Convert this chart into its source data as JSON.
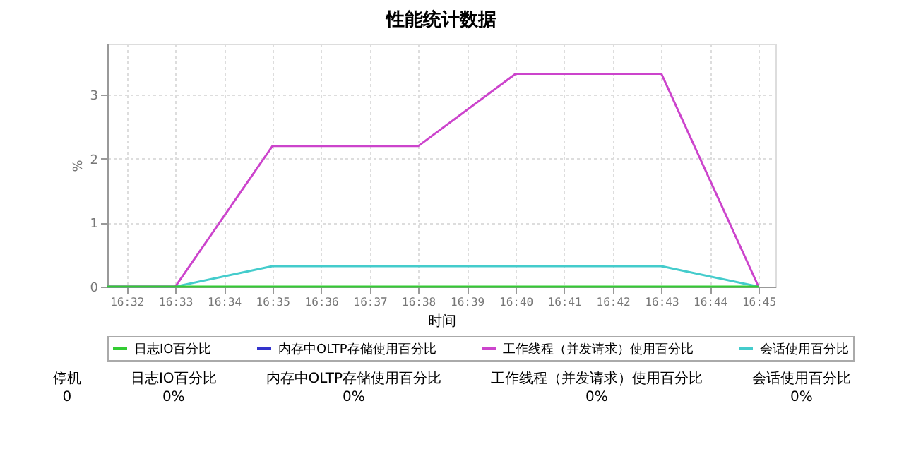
{
  "chart_data": {
    "type": "line",
    "title": "性能统计数据",
    "xlabel": "时间",
    "ylabel": "%",
    "x": [
      16.5267,
      16.55,
      16.5833,
      16.6333,
      16.6667,
      16.7167,
      16.75
    ],
    "series": [
      {
        "name": "日志IO百分比",
        "color": "#33cc33",
        "values": [
          0,
          0,
          0,
          0,
          0,
          0,
          0
        ]
      },
      {
        "name": "内存中OLTP存储使用百分比",
        "color": "#3333cc",
        "values": [
          null,
          null,
          null,
          null,
          null,
          null,
          null
        ]
      },
      {
        "name": "工作线程（并发请求）使用百分比",
        "color": "#cc44cc",
        "values": [
          0,
          0,
          2.2,
          2.2,
          3.33,
          3.33,
          0
        ]
      },
      {
        "name": "会话使用百分比",
        "color": "#44cccc",
        "values": [
          0,
          0,
          0.32,
          0.32,
          0.32,
          0.32,
          0
        ]
      }
    ],
    "xlim": [
      16.5267,
      16.7558
    ],
    "ylim": [
      0,
      3.8
    ],
    "xticks": [
      {
        "value": 16.5333,
        "label": "16:32"
      },
      {
        "value": 16.55,
        "label": "16:33"
      },
      {
        "value": 16.5667,
        "label": "16:34"
      },
      {
        "value": 16.5833,
        "label": "16:35"
      },
      {
        "value": 16.6,
        "label": "16:36"
      },
      {
        "value": 16.6167,
        "label": "16:37"
      },
      {
        "value": 16.6333,
        "label": "16:38"
      },
      {
        "value": 16.65,
        "label": "16:39"
      },
      {
        "value": 16.6667,
        "label": "16:40"
      },
      {
        "value": 16.6833,
        "label": "16:41"
      },
      {
        "value": 16.7,
        "label": "16:42"
      },
      {
        "value": 16.7167,
        "label": "16:43"
      },
      {
        "value": 16.7333,
        "label": "16:44"
      },
      {
        "value": 16.75,
        "label": "16:45"
      }
    ],
    "yticks": [
      0,
      1,
      2,
      3
    ],
    "grid": true,
    "legend": "bottom",
    "marker": "none",
    "line_style": "solid",
    "annotations": [
      "停机",
      "0",
      "日志IO百分比",
      "0%",
      "内存中OLTP存储使用百分比",
      "0%",
      "工作线程（并发请求）使用百分比",
      "0%",
      "会话使用百分比",
      "0%"
    ]
  }
}
